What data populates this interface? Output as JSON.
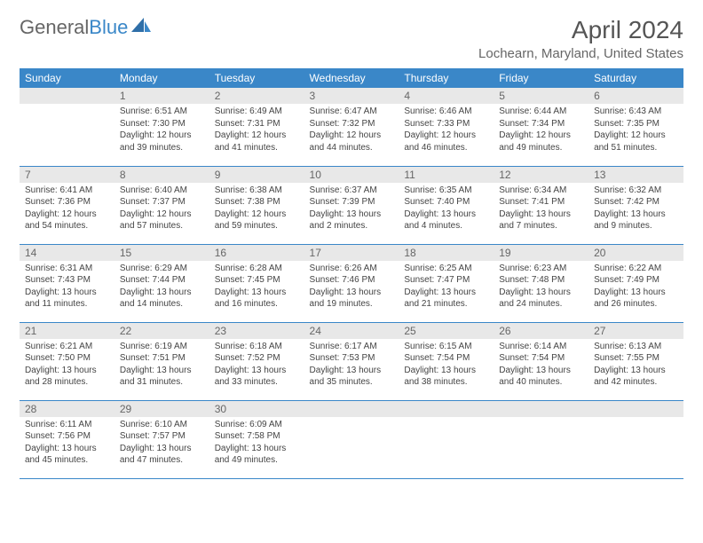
{
  "logo": {
    "part1": "General",
    "part2": "Blue"
  },
  "title": "April 2024",
  "location": "Lochearn, Maryland, United States",
  "colors": {
    "header_bg": "#3a87c8",
    "daynum_bg": "#e8e8e8",
    "border": "#3a87c8",
    "text": "#444"
  },
  "day_labels": [
    "Sunday",
    "Monday",
    "Tuesday",
    "Wednesday",
    "Thursday",
    "Friday",
    "Saturday"
  ],
  "weeks": [
    [
      null,
      {
        "n": "1",
        "sr": "Sunrise: 6:51 AM",
        "ss": "Sunset: 7:30 PM",
        "dl1": "Daylight: 12 hours",
        "dl2": "and 39 minutes."
      },
      {
        "n": "2",
        "sr": "Sunrise: 6:49 AM",
        "ss": "Sunset: 7:31 PM",
        "dl1": "Daylight: 12 hours",
        "dl2": "and 41 minutes."
      },
      {
        "n": "3",
        "sr": "Sunrise: 6:47 AM",
        "ss": "Sunset: 7:32 PM",
        "dl1": "Daylight: 12 hours",
        "dl2": "and 44 minutes."
      },
      {
        "n": "4",
        "sr": "Sunrise: 6:46 AM",
        "ss": "Sunset: 7:33 PM",
        "dl1": "Daylight: 12 hours",
        "dl2": "and 46 minutes."
      },
      {
        "n": "5",
        "sr": "Sunrise: 6:44 AM",
        "ss": "Sunset: 7:34 PM",
        "dl1": "Daylight: 12 hours",
        "dl2": "and 49 minutes."
      },
      {
        "n": "6",
        "sr": "Sunrise: 6:43 AM",
        "ss": "Sunset: 7:35 PM",
        "dl1": "Daylight: 12 hours",
        "dl2": "and 51 minutes."
      }
    ],
    [
      {
        "n": "7",
        "sr": "Sunrise: 6:41 AM",
        "ss": "Sunset: 7:36 PM",
        "dl1": "Daylight: 12 hours",
        "dl2": "and 54 minutes."
      },
      {
        "n": "8",
        "sr": "Sunrise: 6:40 AM",
        "ss": "Sunset: 7:37 PM",
        "dl1": "Daylight: 12 hours",
        "dl2": "and 57 minutes."
      },
      {
        "n": "9",
        "sr": "Sunrise: 6:38 AM",
        "ss": "Sunset: 7:38 PM",
        "dl1": "Daylight: 12 hours",
        "dl2": "and 59 minutes."
      },
      {
        "n": "10",
        "sr": "Sunrise: 6:37 AM",
        "ss": "Sunset: 7:39 PM",
        "dl1": "Daylight: 13 hours",
        "dl2": "and 2 minutes."
      },
      {
        "n": "11",
        "sr": "Sunrise: 6:35 AM",
        "ss": "Sunset: 7:40 PM",
        "dl1": "Daylight: 13 hours",
        "dl2": "and 4 minutes."
      },
      {
        "n": "12",
        "sr": "Sunrise: 6:34 AM",
        "ss": "Sunset: 7:41 PM",
        "dl1": "Daylight: 13 hours",
        "dl2": "and 7 minutes."
      },
      {
        "n": "13",
        "sr": "Sunrise: 6:32 AM",
        "ss": "Sunset: 7:42 PM",
        "dl1": "Daylight: 13 hours",
        "dl2": "and 9 minutes."
      }
    ],
    [
      {
        "n": "14",
        "sr": "Sunrise: 6:31 AM",
        "ss": "Sunset: 7:43 PM",
        "dl1": "Daylight: 13 hours",
        "dl2": "and 11 minutes."
      },
      {
        "n": "15",
        "sr": "Sunrise: 6:29 AM",
        "ss": "Sunset: 7:44 PM",
        "dl1": "Daylight: 13 hours",
        "dl2": "and 14 minutes."
      },
      {
        "n": "16",
        "sr": "Sunrise: 6:28 AM",
        "ss": "Sunset: 7:45 PM",
        "dl1": "Daylight: 13 hours",
        "dl2": "and 16 minutes."
      },
      {
        "n": "17",
        "sr": "Sunrise: 6:26 AM",
        "ss": "Sunset: 7:46 PM",
        "dl1": "Daylight: 13 hours",
        "dl2": "and 19 minutes."
      },
      {
        "n": "18",
        "sr": "Sunrise: 6:25 AM",
        "ss": "Sunset: 7:47 PM",
        "dl1": "Daylight: 13 hours",
        "dl2": "and 21 minutes."
      },
      {
        "n": "19",
        "sr": "Sunrise: 6:23 AM",
        "ss": "Sunset: 7:48 PM",
        "dl1": "Daylight: 13 hours",
        "dl2": "and 24 minutes."
      },
      {
        "n": "20",
        "sr": "Sunrise: 6:22 AM",
        "ss": "Sunset: 7:49 PM",
        "dl1": "Daylight: 13 hours",
        "dl2": "and 26 minutes."
      }
    ],
    [
      {
        "n": "21",
        "sr": "Sunrise: 6:21 AM",
        "ss": "Sunset: 7:50 PM",
        "dl1": "Daylight: 13 hours",
        "dl2": "and 28 minutes."
      },
      {
        "n": "22",
        "sr": "Sunrise: 6:19 AM",
        "ss": "Sunset: 7:51 PM",
        "dl1": "Daylight: 13 hours",
        "dl2": "and 31 minutes."
      },
      {
        "n": "23",
        "sr": "Sunrise: 6:18 AM",
        "ss": "Sunset: 7:52 PM",
        "dl1": "Daylight: 13 hours",
        "dl2": "and 33 minutes."
      },
      {
        "n": "24",
        "sr": "Sunrise: 6:17 AM",
        "ss": "Sunset: 7:53 PM",
        "dl1": "Daylight: 13 hours",
        "dl2": "and 35 minutes."
      },
      {
        "n": "25",
        "sr": "Sunrise: 6:15 AM",
        "ss": "Sunset: 7:54 PM",
        "dl1": "Daylight: 13 hours",
        "dl2": "and 38 minutes."
      },
      {
        "n": "26",
        "sr": "Sunrise: 6:14 AM",
        "ss": "Sunset: 7:54 PM",
        "dl1": "Daylight: 13 hours",
        "dl2": "and 40 minutes."
      },
      {
        "n": "27",
        "sr": "Sunrise: 6:13 AM",
        "ss": "Sunset: 7:55 PM",
        "dl1": "Daylight: 13 hours",
        "dl2": "and 42 minutes."
      }
    ],
    [
      {
        "n": "28",
        "sr": "Sunrise: 6:11 AM",
        "ss": "Sunset: 7:56 PM",
        "dl1": "Daylight: 13 hours",
        "dl2": "and 45 minutes."
      },
      {
        "n": "29",
        "sr": "Sunrise: 6:10 AM",
        "ss": "Sunset: 7:57 PM",
        "dl1": "Daylight: 13 hours",
        "dl2": "and 47 minutes."
      },
      {
        "n": "30",
        "sr": "Sunrise: 6:09 AM",
        "ss": "Sunset: 7:58 PM",
        "dl1": "Daylight: 13 hours",
        "dl2": "and 49 minutes."
      },
      null,
      null,
      null,
      null
    ]
  ]
}
